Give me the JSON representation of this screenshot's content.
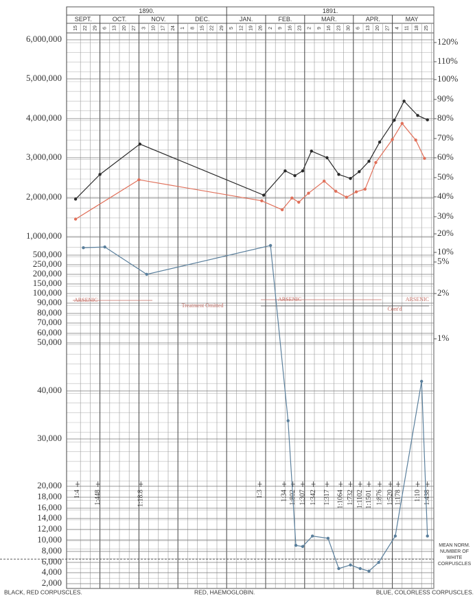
{
  "chart_data": {
    "type": "line",
    "years": [
      {
        "name": "1890.",
        "months": [
          {
            "name": "SEPT.",
            "days": [
              15,
              22,
              29
            ]
          },
          {
            "name": "OCT.",
            "days": [
              6,
              13,
              20,
              27
            ]
          },
          {
            "name": "NOV.",
            "days": [
              3,
              10,
              17,
              24
            ]
          },
          {
            "name": "DEC.",
            "days": [
              1,
              8,
              15,
              22,
              29
            ]
          }
        ]
      },
      {
        "name": "1891.",
        "months": [
          {
            "name": "JAN.",
            "days": [
              5,
              12,
              19,
              26
            ]
          },
          {
            "name": "FEB.",
            "days": [
              2,
              9,
              16,
              23
            ]
          },
          {
            "name": "MAR.",
            "days": [
              2,
              9,
              16,
              23,
              30
            ]
          },
          {
            "name": "APR.",
            "days": [
              6,
              13,
              20,
              27
            ]
          },
          {
            "name": "MAY",
            "days": [
              4,
              11,
              18,
              25
            ]
          }
        ]
      }
    ],
    "yticks": [
      {
        "value": 6000000,
        "label": "6,000,000"
      },
      {
        "value": 5000000,
        "label": "5,000,000"
      },
      {
        "value": 4000000,
        "label": "4,000,000"
      },
      {
        "value": 3000000,
        "label": "3,000,000"
      },
      {
        "value": 2000000,
        "label": "2,000,000"
      },
      {
        "value": 1000000,
        "label": "1,000,000"
      },
      {
        "value": 500000,
        "label": "500,000"
      },
      {
        "value": 250000,
        "label": "250,000"
      },
      {
        "value": 200000,
        "label": "200,000"
      },
      {
        "value": 150000,
        "label": "150,000"
      },
      {
        "value": 100000,
        "label": "100,000"
      },
      {
        "value": 90000,
        "label": "90,000"
      },
      {
        "value": 80000,
        "label": "80,000"
      },
      {
        "value": 70000,
        "label": "70,000"
      },
      {
        "value": 60000,
        "label": "60,000"
      },
      {
        "value": 50000,
        "label": "50,000"
      },
      {
        "value": 40000,
        "label": "40,000"
      },
      {
        "value": 30000,
        "label": "30,000"
      },
      {
        "value": 20000,
        "label": "20,000"
      },
      {
        "value": 18000,
        "label": "18,000"
      },
      {
        "value": 16000,
        "label": "16,000"
      },
      {
        "value": 14000,
        "label": "14,000"
      },
      {
        "value": 12000,
        "label": "12,000"
      },
      {
        "value": 10000,
        "label": "10,000"
      },
      {
        "value": 8000,
        "label": "8,000"
      },
      {
        "value": 6000,
        "label": "6,000"
      },
      {
        "value": 4000,
        "label": "4,000"
      },
      {
        "value": 2000,
        "label": "2,000"
      }
    ],
    "y2ticks": [
      {
        "value": 120,
        "label": "120%"
      },
      {
        "value": 110,
        "label": "110%"
      },
      {
        "value": 100,
        "label": "100%"
      },
      {
        "value": 90,
        "label": "90%"
      },
      {
        "value": 80,
        "label": "80%"
      },
      {
        "value": 70,
        "label": "70%"
      },
      {
        "value": 60,
        "label": "60%"
      },
      {
        "value": 50,
        "label": "50%"
      },
      {
        "value": 40,
        "label": "40%"
      },
      {
        "value": 30,
        "label": "30%"
      },
      {
        "value": 20,
        "label": "20%"
      },
      {
        "value": 10,
        "label": "10%"
      },
      {
        "value": 5,
        "label": "5%"
      },
      {
        "value": 2,
        "label": "2%"
      },
      {
        "value": 1,
        "label": "1%"
      }
    ],
    "series": [
      {
        "name": "BLACK, RED CORPUSCLES.",
        "color": "#2a2a2a",
        "x": [
          0,
          2.5,
          6.6,
          19.3,
          21.5,
          22.5,
          23.3,
          24.2,
          25.8,
          27.0,
          28.2,
          29.1,
          30.1,
          31.2,
          32.7,
          33.7,
          35.1,
          36.1
        ],
        "values": [
          1960000,
          2580000,
          3350000,
          2060000,
          2670000,
          2550000,
          2670000,
          3170000,
          3000000,
          2580000,
          2480000,
          2650000,
          2910000,
          3400000,
          3960000,
          4440000,
          4080000,
          3970000
        ]
      },
      {
        "name": "RED, HAEMOGLOBIN.",
        "color": "#e0705a",
        "axis": "y2",
        "x": [
          0,
          6.5,
          19.1,
          21.2,
          22.2,
          22.9,
          23.9,
          25.5,
          26.7,
          27.8,
          28.8,
          29.7,
          30.8,
          32.5,
          33.5,
          34.9,
          35.8
        ],
        "values": [
          28.6,
          48.9,
          38,
          33.5,
          39.4,
          37.3,
          41.9,
          48.2,
          42.9,
          39.8,
          42.6,
          44,
          57.6,
          69.5,
          77.6,
          69.2,
          59.7
        ]
      },
      {
        "name": "BLUE, COLORLESS CORPUSCLES.",
        "color": "#5a7f9c",
        "x": [
          0.8,
          3.0,
          7.3,
          20.0,
          21.8,
          22.6,
          23.3,
          24.3,
          25.9,
          27.0,
          28.2,
          29.2,
          30.1,
          31.1,
          32.8,
          35.5,
          36.1
        ],
        "values": [
          700000,
          720000,
          200000,
          760000,
          33800,
          9100,
          8900,
          10800,
          10400,
          4800,
          5500,
          4800,
          4300,
          6000,
          10800,
          42000,
          10800
        ]
      }
    ],
    "ratio_labels": [
      {
        "x": 0.2,
        "label": "1:4"
      },
      {
        "x": 2.3,
        "label": "1:448"
      },
      {
        "x": 6.7,
        "label": "1:18.8"
      },
      {
        "x": 18.9,
        "label": "1:3"
      },
      {
        "x": 21.4,
        "label": "1:34"
      },
      {
        "x": 22.3,
        "label": "1:802"
      },
      {
        "x": 23.3,
        "label": "1:307"
      },
      {
        "x": 24.4,
        "label": "1:342"
      },
      {
        "x": 25.8,
        "label": "1:317"
      },
      {
        "x": 27.2,
        "label": "1:1064"
      },
      {
        "x": 28.2,
        "label": "1:732"
      },
      {
        "x": 29.2,
        "label": "1:1102"
      },
      {
        "x": 30.1,
        "label": "1:1501"
      },
      {
        "x": 31.2,
        "label": "1:876"
      },
      {
        "x": 32.3,
        "label": "1:520"
      },
      {
        "x": 33.1,
        "label": "1:178"
      },
      {
        "x": 35.1,
        "label": "1:10"
      },
      {
        "x": 36.1,
        "label": "1:438"
      }
    ],
    "treatment": {
      "arsenic_1": "ARSENIC",
      "omitted": "Treatment Omitted",
      "arsenic_2": "ARSENIC",
      "continued": "Cont'd",
      "arsenic_3": "ARSENIC"
    },
    "mean_norm": {
      "value": 6600,
      "label": [
        "MEAN NORM.",
        "NUMBER OF",
        "WHITE",
        "CORPUSCLES"
      ]
    }
  }
}
